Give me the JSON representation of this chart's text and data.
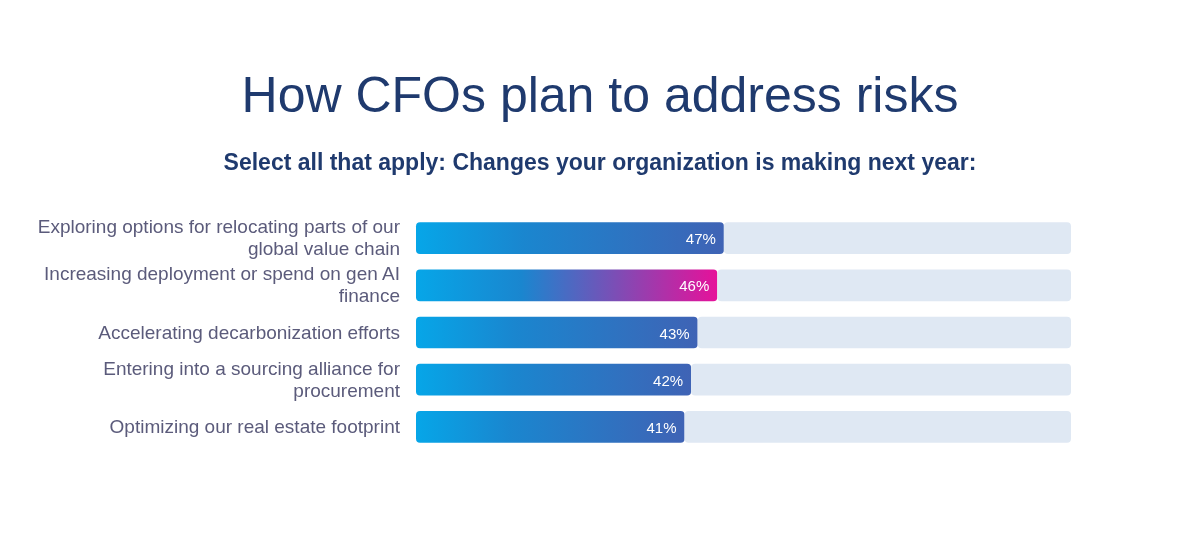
{
  "chart_data": {
    "type": "bar",
    "orientation": "horizontal",
    "stacked": true,
    "title": "How CFOs plan to address risks",
    "subtitle": "Select all that apply: Changes your organization is making next year:",
    "categories": [
      "Exploring options for relocating parts of our global value chain",
      "Increasing deployment or spend on gen AI finance",
      "Accelerating decarbonization efforts",
      "Entering into a sourcing alliance for procurement",
      "Optimizing our real estate footprint"
    ],
    "xlim": [
      0,
      100
    ],
    "series": [
      {
        "colors": [
          "#3f63b5",
          "#e6119a",
          "#3f63b5",
          "#3f63b5",
          "#3f63b5"
        ],
        "values": [
          47,
          46,
          43,
          42,
          41
        ],
        "value_labels": [
          "47%",
          "46%",
          "43%",
          "42%",
          "41%"
        ]
      },
      {
        "color": "#dfe8f3",
        "values": [
          53,
          54,
          57,
          58,
          59
        ]
      }
    ]
  }
}
